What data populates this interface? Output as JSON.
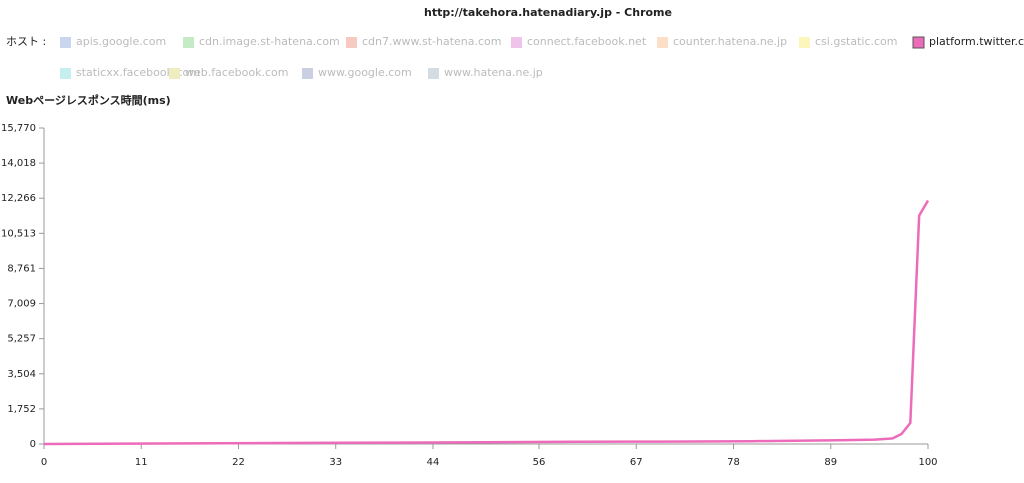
{
  "chart_data": {
    "type": "line",
    "title": "http://takehora.hatenadiary.jp - Chrome",
    "legend_title": "ホスト :",
    "y_label": "Webページレスポンス時間(ms)",
    "x": [
      0,
      10,
      20,
      30,
      40,
      50,
      60,
      70,
      80,
      90,
      94,
      96,
      97,
      98,
      99,
      100
    ],
    "series": [
      {
        "name": "apis.google.com",
        "color": "#c9d6ee",
        "visible": false
      },
      {
        "name": "cdn.image.st-hatena.com",
        "color": "#c6e9c6",
        "visible": false
      },
      {
        "name": "cdn7.www.st-hatena.com",
        "color": "#f6c9c3",
        "visible": false
      },
      {
        "name": "connect.facebook.net",
        "color": "#eec3ec",
        "visible": false
      },
      {
        "name": "counter.hatena.ne.jp",
        "color": "#fcdfc8",
        "visible": false
      },
      {
        "name": "csi.gstatic.com",
        "color": "#fcf6bd",
        "visible": false
      },
      {
        "name": "platform.twitter.com",
        "color": "#ec6cbb",
        "visible": true,
        "values": [
          0,
          20,
          40,
          55,
          70,
          90,
          110,
          120,
          140,
          190,
          220,
          280,
          500,
          1050,
          11400,
          12150
        ]
      },
      {
        "name": "staticxx.facebook.com",
        "color": "#c5efef",
        "visible": false
      },
      {
        "name": "web.facebook.com",
        "color": "#ededc0",
        "visible": false
      },
      {
        "name": "www.google.com",
        "color": "#cbcfe2",
        "visible": false
      },
      {
        "name": "www.hatena.ne.jp",
        "color": "#d3dbe3",
        "visible": false
      }
    ],
    "xlim": [
      0,
      100
    ],
    "xticks": [
      0,
      11,
      22,
      33,
      44,
      56,
      67,
      78,
      89,
      100
    ],
    "ylim": [
      0,
      15770
    ],
    "yticks": [
      0,
      {
        "value": 1752,
        "label": "1,752"
      },
      {
        "value": 3504,
        "label": "3,504"
      },
      {
        "value": 5257,
        "label": "5,257"
      },
      {
        "value": 7009,
        "label": "7,009"
      },
      {
        "value": 8761,
        "label": "8,761"
      },
      {
        "value": 10513,
        "label": "10,513"
      },
      {
        "value": 12266,
        "label": "12,266"
      },
      {
        "value": 14018,
        "label": "14,018"
      },
      {
        "value": 15770,
        "label": "15,770"
      }
    ]
  }
}
